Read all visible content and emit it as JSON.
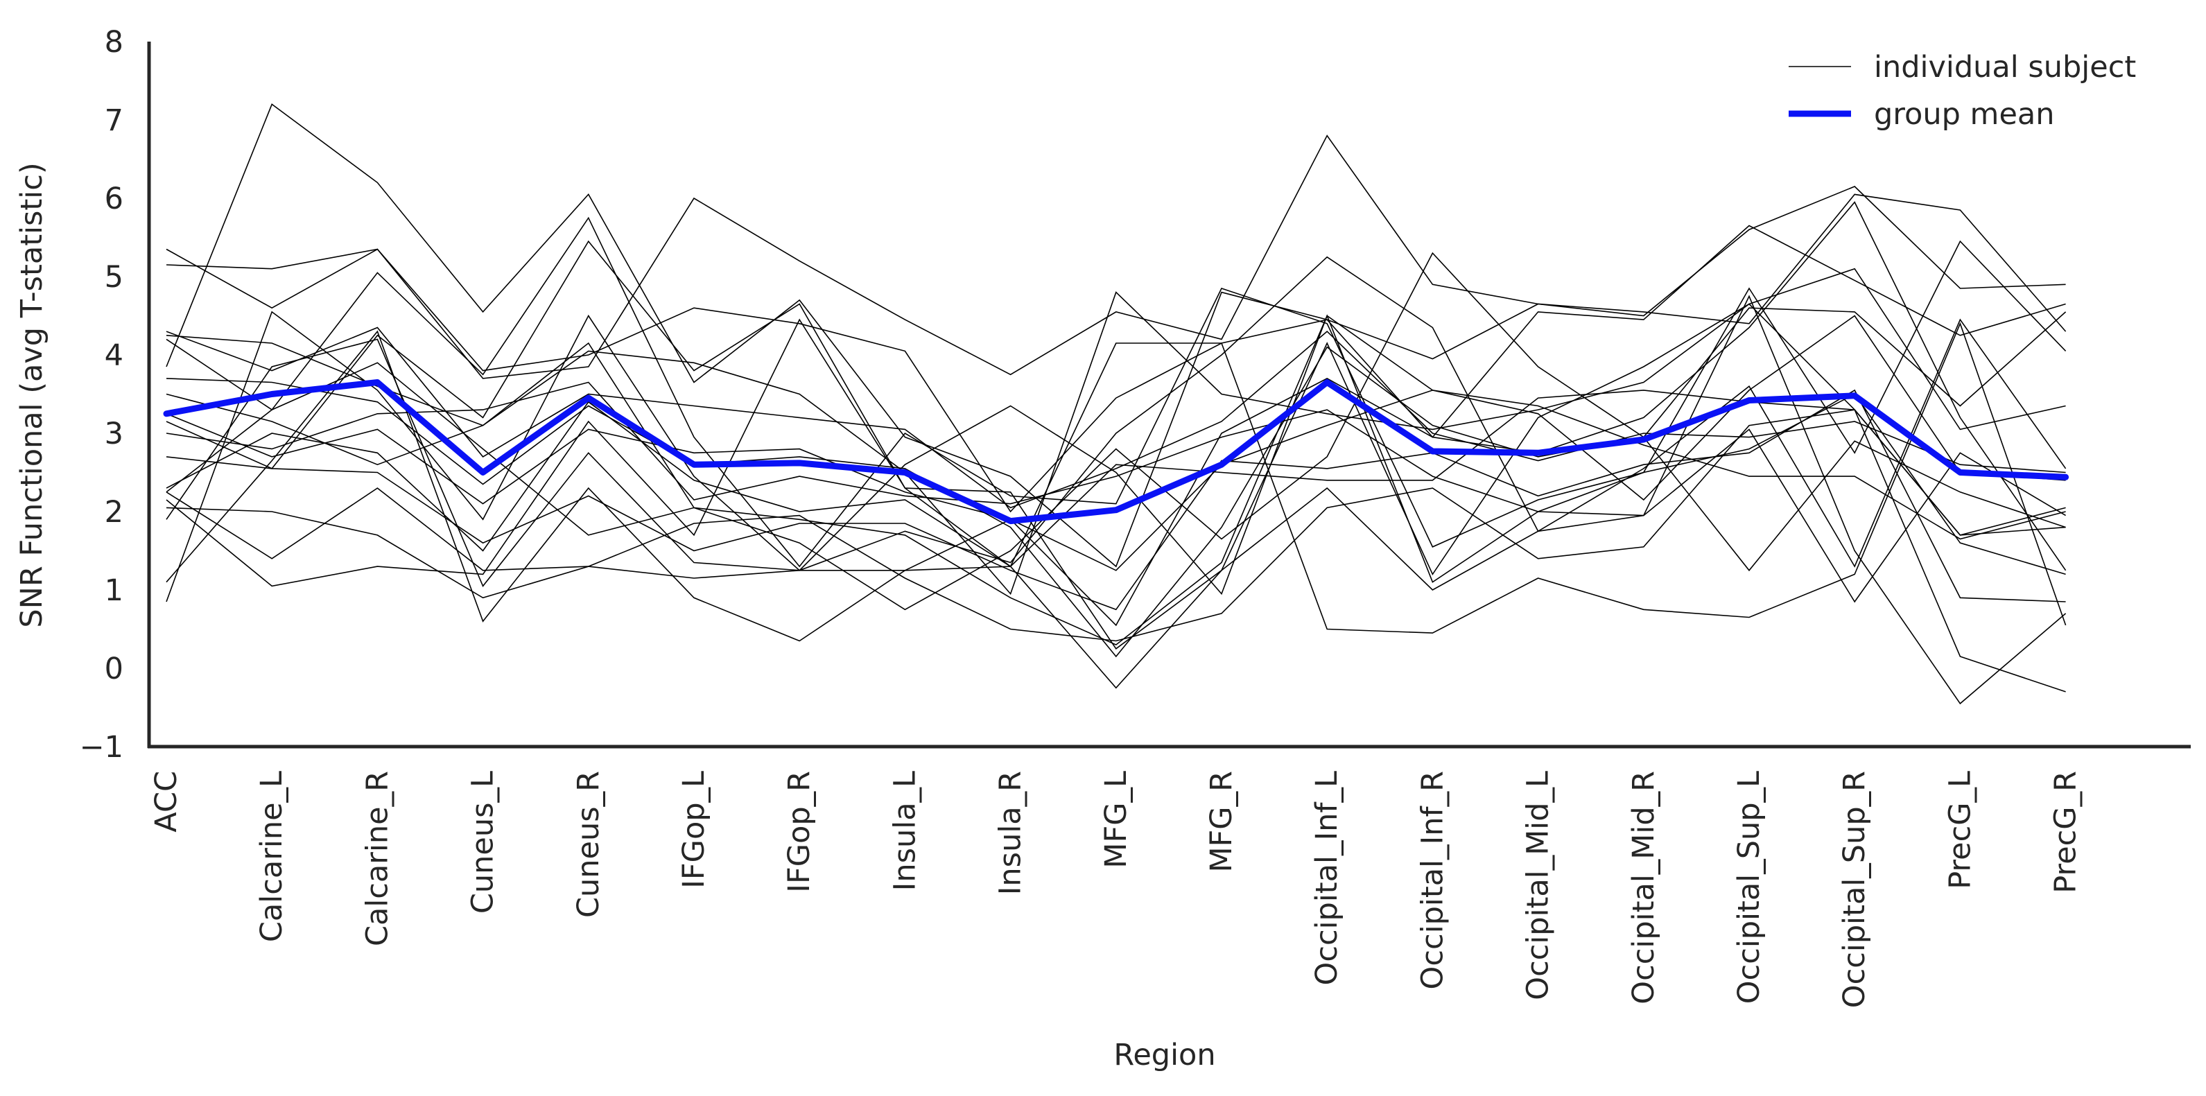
{
  "chart_data": {
    "type": "line",
    "xlabel": "Region",
    "ylabel": "SNR Functional (avg T-statistic)",
    "ylim": [
      -1,
      8
    ],
    "yticks": [
      "−1",
      "0",
      "1",
      "2",
      "3",
      "4",
      "5",
      "6",
      "7",
      "8"
    ],
    "grid": false,
    "legend_position": "top-right",
    "legend": {
      "individual_label": "individual subject",
      "mean_label": "group mean"
    },
    "colors": {
      "individual": "#000000",
      "mean": "#0a12f5",
      "axis": "#262626"
    },
    "categories": [
      "ACC",
      "Calcarine_L",
      "Calcarine_R",
      "Cuneus_L",
      "Cuneus_R",
      "IFGop_L",
      "IFGop_R",
      "Insula_L",
      "Insula_R",
      "MFG_L",
      "MFG_R",
      "Occipital_Inf_L",
      "Occipital_Inf_R",
      "Occipital_Mid_L",
      "Occipital_Mid_R",
      "Occipital_Sup_L",
      "Occipital_Sup_R",
      "PrecG_L",
      "PrecG_R"
    ],
    "series": [
      {
        "values": [
          5.35,
          4.6,
          5.35,
          3.8,
          4.0,
          4.6,
          4.4,
          4.05,
          2.0,
          3.45,
          4.15,
          4.45,
          2.95,
          4.55,
          4.45,
          5.65,
          4.95,
          4.25,
          4.65
        ]
      },
      {
        "values": [
          3.85,
          7.2,
          6.2,
          4.55,
          6.05,
          3.65,
          4.7,
          2.95,
          2.45,
          1.3,
          4.8,
          4.45,
          3.95,
          4.65,
          4.55,
          4.4,
          6.05,
          5.85,
          4.3
        ]
      },
      {
        "values": [
          5.15,
          5.1,
          5.35,
          3.7,
          3.85,
          6.0,
          5.2,
          4.45,
          3.75,
          4.55,
          4.2,
          6.8,
          4.9,
          4.65,
          4.5,
          5.6,
          6.15,
          4.85,
          4.9
        ]
      },
      {
        "values": [
          4.3,
          3.8,
          4.35,
          2.7,
          3.5,
          3.35,
          3.2,
          3.05,
          2.05,
          2.55,
          3.15,
          4.3,
          3.0,
          2.65,
          3.0,
          2.95,
          3.15,
          2.6,
          2.5
        ]
      },
      {
        "values": [
          4.25,
          4.15,
          3.6,
          3.1,
          4.15,
          2.05,
          1.9,
          1.7,
          0.9,
          0.3,
          1.35,
          4.5,
          3.55,
          3.25,
          2.15,
          3.55,
          4.5,
          2.5,
          2.4
        ]
      },
      {
        "values": [
          3.7,
          3.65,
          3.4,
          2.35,
          3.35,
          2.6,
          2.7,
          2.55,
          1.8,
          0.15,
          1.8,
          4.1,
          3.1,
          2.7,
          2.95,
          4.6,
          4.55,
          3.35,
          4.55
        ]
      },
      {
        "values": [
          3.0,
          2.8,
          3.25,
          3.3,
          3.65,
          2.15,
          2.45,
          2.2,
          2.1,
          2.45,
          2.95,
          3.3,
          2.45,
          2.0,
          2.5,
          2.8,
          3.5,
          1.6,
          1.2
        ]
      },
      {
        "values": [
          3.25,
          2.7,
          3.05,
          2.1,
          3.05,
          2.75,
          2.8,
          2.25,
          1.9,
          1.25,
          2.6,
          3.1,
          3.55,
          3.35,
          2.85,
          2.45,
          2.45,
          1.65,
          2.0
        ]
      },
      {
        "values": [
          2.7,
          2.55,
          2.5,
          1.6,
          2.2,
          1.5,
          1.85,
          1.85,
          1.25,
          0.75,
          2.65,
          2.55,
          2.75,
          2.2,
          2.6,
          2.75,
          3.55,
          0.9,
          0.85
        ]
      },
      {
        "values": [
          2.3,
          3.0,
          2.75,
          1.5,
          3.4,
          2.4,
          2.0,
          2.15,
          1.3,
          2.6,
          2.5,
          2.4,
          2.4,
          3.45,
          3.55,
          3.4,
          3.3,
          1.7,
          2.05
        ]
      },
      {
        "values": [
          2.05,
          2.0,
          1.7,
          0.9,
          1.3,
          1.85,
          1.95,
          1.15,
          0.5,
          0.35,
          0.7,
          2.05,
          2.3,
          1.4,
          1.55,
          3.1,
          3.3,
          1.7,
          1.8
        ]
      },
      {
        "values": [
          2.25,
          1.4,
          2.3,
          1.25,
          1.3,
          1.15,
          1.25,
          2.6,
          3.35,
          2.5,
          0.95,
          4.5,
          1.1,
          2.0,
          1.95,
          4.75,
          1.5,
          -0.45,
          0.7
        ]
      },
      {
        "values": [
          1.1,
          2.65,
          4.3,
          0.6,
          2.3,
          0.9,
          0.35,
          1.25,
          1.3,
          -0.25,
          1.25,
          4.15,
          1.2,
          3.2,
          3.85,
          4.65,
          3.3,
          0.15,
          -0.3
        ]
      },
      {
        "values": [
          0.85,
          4.55,
          3.55,
          1.9,
          4.5,
          2.45,
          1.25,
          1.75,
          1.35,
          3.0,
          4.0,
          5.25,
          4.35,
          1.75,
          2.55,
          3.6,
          1.3,
          4.45,
          2.55
        ]
      },
      {
        "values": [
          3.5,
          3.15,
          2.6,
          3.1,
          4.05,
          3.9,
          3.5,
          2.5,
          0.95,
          4.8,
          3.5,
          3.25,
          3.05,
          3.3,
          3.65,
          4.65,
          5.1,
          3.05,
          3.35
        ]
      },
      {
        "values": [
          4.2,
          3.3,
          5.05,
          3.75,
          5.75,
          2.95,
          1.3,
          3.0,
          2.2,
          2.1,
          4.85,
          4.4,
          1.55,
          2.15,
          2.5,
          4.85,
          2.75,
          5.45,
          4.05
        ]
      },
      {
        "values": [
          1.9,
          3.85,
          4.2,
          1.05,
          2.75,
          1.35,
          1.25,
          1.25,
          1.9,
          0.55,
          3.0,
          3.7,
          2.95,
          2.75,
          3.2,
          4.35,
          5.95,
          3.2,
          1.25
        ]
      },
      {
        "values": [
          2.15,
          1.05,
          1.3,
          1.2,
          3.15,
          1.7,
          4.45,
          2.3,
          1.3,
          4.15,
          4.15,
          0.5,
          0.45,
          1.15,
          0.75,
          0.65,
          1.2,
          4.4,
          0.55
        ]
      },
      {
        "values": [
          2.25,
          3.3,
          3.9,
          2.8,
          1.7,
          2.05,
          1.6,
          0.75,
          1.5,
          2.8,
          1.65,
          2.7,
          5.3,
          3.85,
          2.95,
          1.25,
          2.9,
          2.25,
          1.8
        ]
      },
      {
        "values": [
          3.15,
          2.55,
          4.25,
          3.2,
          5.45,
          3.8,
          4.65,
          2.3,
          2.25,
          0.25,
          1.25,
          2.3,
          1.0,
          1.75,
          1.95,
          3.05,
          0.85,
          2.75,
          1.95
        ]
      }
    ],
    "mean": {
      "values": [
        3.25,
        3.5,
        3.65,
        2.5,
        3.45,
        2.6,
        2.62,
        2.5,
        1.88,
        2.02,
        2.6,
        3.65,
        2.77,
        2.75,
        2.92,
        3.42,
        3.48,
        2.5,
        2.44
      ]
    }
  }
}
